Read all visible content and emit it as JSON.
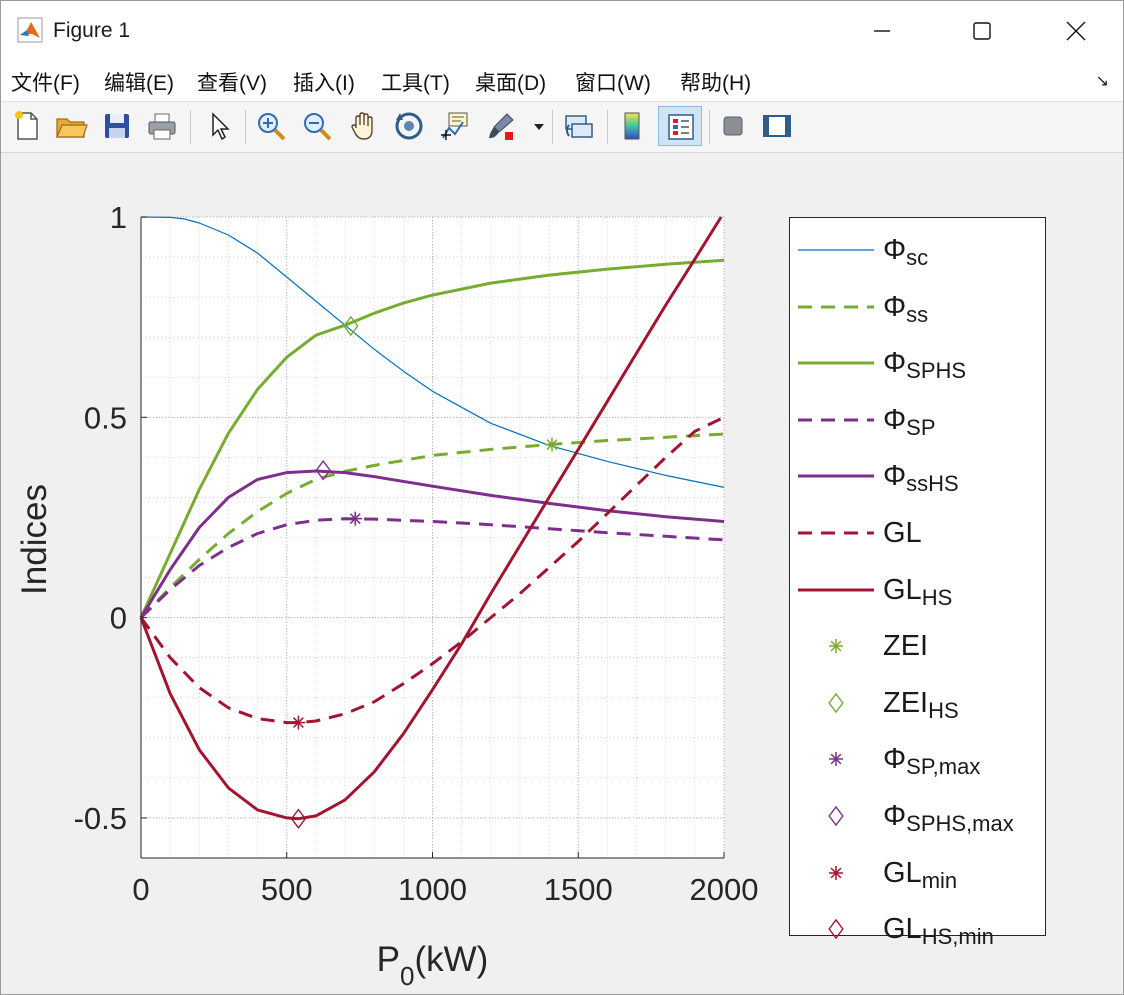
{
  "window": {
    "title": "Figure 1",
    "controls": [
      "minimize",
      "maximize",
      "close"
    ]
  },
  "menu": {
    "items": [
      "文件(F)",
      "编辑(E)",
      "查看(V)",
      "插入(I)",
      "工具(T)",
      "桌面(D)",
      "窗口(W)",
      "帮助(H)"
    ],
    "dock_arrow": "↘"
  },
  "toolbar": {
    "buttons": [
      {
        "name": "new-figure",
        "icon": "new-file-icon"
      },
      {
        "name": "open-file",
        "icon": "folder-icon"
      },
      {
        "name": "save-figure",
        "icon": "floppy-disk-icon"
      },
      {
        "name": "print-figure",
        "icon": "printer-icon"
      },
      {
        "name": "edit-plot",
        "icon": "arrow-cursor-icon"
      },
      {
        "name": "zoom-in",
        "icon": "zoom-in-icon"
      },
      {
        "name": "zoom-out",
        "icon": "zoom-out-icon"
      },
      {
        "name": "pan",
        "icon": "hand-icon"
      },
      {
        "name": "rotate-3d",
        "icon": "rotate-icon"
      },
      {
        "name": "data-cursor",
        "icon": "data-cursor-icon"
      },
      {
        "name": "brush",
        "icon": "brush-icon"
      },
      {
        "name": "link-plot",
        "icon": "link-icon"
      },
      {
        "name": "colorbar",
        "icon": "colorbar-icon"
      },
      {
        "name": "legend",
        "icon": "legend-icon",
        "pressed": true
      },
      {
        "name": "hide-plot-tools",
        "icon": "hide-tools-icon"
      },
      {
        "name": "show-plot-tools",
        "icon": "show-tools-icon"
      }
    ]
  },
  "colors": {
    "blue": "#0072bd",
    "green": "#77ac30",
    "purple": "#7e2f8e",
    "red": "#a2142f"
  },
  "chart_data": {
    "type": "line",
    "title": "",
    "xlabel": "P",
    "xlabel_sub": "0",
    "xlabel_tail": "(kW)",
    "ylabel": "Indices",
    "xlim": [
      0,
      2000
    ],
    "ylim": [
      -0.6,
      1.0
    ],
    "xticks": [
      0,
      500,
      1000,
      1500,
      2000
    ],
    "xtick_labels": [
      "0",
      "500",
      "1000",
      "1500",
      "2000"
    ],
    "yticks": [
      -0.5,
      0,
      0.5,
      1
    ],
    "ytick_labels": [
      "-0.5",
      "0",
      "0.5",
      "1"
    ],
    "grid": "major and minor",
    "legend_position": "outside-right",
    "series": [
      {
        "key": "phi_sc",
        "name": "Φ",
        "sub": "sc",
        "color": "#0072bd",
        "style": "solid",
        "width": 1.2,
        "x": [
          0,
          100,
          150,
          200,
          300,
          400,
          500,
          600,
          700,
          800,
          900,
          1000,
          1200,
          1400,
          1600,
          1800,
          2000
        ],
        "y": [
          1.0,
          0.999,
          0.995,
          0.985,
          0.955,
          0.91,
          0.85,
          0.79,
          0.73,
          0.67,
          0.615,
          0.565,
          0.485,
          0.43,
          0.39,
          0.355,
          0.325
        ]
      },
      {
        "key": "phi_ss",
        "name": "Φ",
        "sub": "ss",
        "color": "#77ac30",
        "style": "dashed",
        "width": 3,
        "x": [
          0,
          100,
          200,
          300,
          400,
          500,
          600,
          700,
          800,
          1000,
          1200,
          1400,
          1600,
          1800,
          2000
        ],
        "y": [
          0.0,
          0.075,
          0.145,
          0.21,
          0.265,
          0.31,
          0.345,
          0.365,
          0.38,
          0.405,
          0.42,
          0.432,
          0.442,
          0.45,
          0.458
        ]
      },
      {
        "key": "phi_sphs",
        "name": "Φ",
        "sub": "SPHS",
        "color": "#77ac30",
        "style": "solid",
        "width": 3,
        "x": [
          0,
          100,
          200,
          300,
          400,
          500,
          600,
          700,
          800,
          900,
          1000,
          1200,
          1400,
          1600,
          1800,
          2000
        ],
        "y": [
          0.0,
          0.16,
          0.32,
          0.46,
          0.57,
          0.65,
          0.705,
          0.73,
          0.76,
          0.785,
          0.805,
          0.835,
          0.855,
          0.87,
          0.882,
          0.892
        ]
      },
      {
        "key": "phi_sp",
        "name": "Φ",
        "sub": "SP",
        "color": "#7e2f8e",
        "style": "dashed",
        "width": 3,
        "x": [
          0,
          100,
          200,
          300,
          400,
          500,
          600,
          700,
          800,
          1000,
          1200,
          1400,
          1600,
          1800,
          2000
        ],
        "y": [
          0.0,
          0.07,
          0.13,
          0.175,
          0.21,
          0.232,
          0.243,
          0.247,
          0.246,
          0.24,
          0.232,
          0.222,
          0.212,
          0.203,
          0.194
        ]
      },
      {
        "key": "phi_sshs",
        "name": "Φ",
        "sub": "ssHS",
        "color": "#7e2f8e",
        "style": "solid",
        "width": 3,
        "x": [
          0,
          100,
          200,
          300,
          400,
          500,
          600,
          700,
          800,
          1000,
          1200,
          1400,
          1600,
          1800,
          2000
        ],
        "y": [
          0.0,
          0.12,
          0.225,
          0.3,
          0.345,
          0.362,
          0.366,
          0.362,
          0.352,
          0.328,
          0.305,
          0.285,
          0.267,
          0.252,
          0.24
        ]
      },
      {
        "key": "gl",
        "name": "GL",
        "sub": "",
        "color": "#a2142f",
        "style": "dashed",
        "width": 3,
        "x": [
          0,
          100,
          200,
          300,
          400,
          500,
          540,
          600,
          700,
          800,
          900,
          1000,
          1100,
          1200,
          1300,
          1400,
          1500,
          1600,
          1700,
          1800,
          1900,
          2000
        ],
        "y": [
          0.0,
          -0.1,
          -0.175,
          -0.225,
          -0.252,
          -0.262,
          -0.262,
          -0.258,
          -0.24,
          -0.21,
          -0.165,
          -0.115,
          -0.06,
          0.0,
          0.06,
          0.125,
          0.19,
          0.26,
          0.33,
          0.4,
          0.465,
          0.5
        ]
      },
      {
        "key": "gl_hs",
        "name": "GL",
        "sub": "HS",
        "color": "#a2142f",
        "style": "solid",
        "width": 3,
        "x": [
          0,
          100,
          200,
          300,
          400,
          500,
          540,
          600,
          700,
          800,
          900,
          1000,
          1100,
          1200,
          1300,
          1400,
          1500,
          1600,
          1700,
          1800,
          1900,
          1990
        ],
        "y": [
          0.0,
          -0.19,
          -0.33,
          -0.425,
          -0.48,
          -0.5,
          -0.502,
          -0.495,
          -0.455,
          -0.385,
          -0.29,
          -0.18,
          -0.065,
          0.06,
          0.18,
          0.3,
          0.42,
          0.54,
          0.66,
          0.78,
          0.895,
          1.0
        ]
      }
    ],
    "markers": [
      {
        "key": "zei",
        "name": "ZEI",
        "sub": "",
        "symbol": "asterisk",
        "color": "#77ac30",
        "x": 1410,
        "y": 0.432
      },
      {
        "key": "zei_hs",
        "name": "ZEI",
        "sub": "HS",
        "symbol": "diamond",
        "color": "#77ac30",
        "x": 720,
        "y": 0.728
      },
      {
        "key": "phi_sp_max",
        "name": "Φ",
        "sub": "SP,max",
        "symbol": "asterisk",
        "color": "#7e2f8e",
        "x": 735,
        "y": 0.247
      },
      {
        "key": "phi_sphs_max",
        "name": "Φ",
        "sub": "SPHS,max",
        "symbol": "diamond",
        "color": "#7e2f8e",
        "x": 625,
        "y": 0.368
      },
      {
        "key": "gl_min",
        "name": "GL",
        "sub": "min",
        "symbol": "asterisk",
        "color": "#a2142f",
        "x": 540,
        "y": -0.262
      },
      {
        "key": "gl_hs_min",
        "name": "GL",
        "sub": "HS,min",
        "symbol": "diamond",
        "color": "#a2142f",
        "x": 540,
        "y": -0.502
      }
    ]
  }
}
